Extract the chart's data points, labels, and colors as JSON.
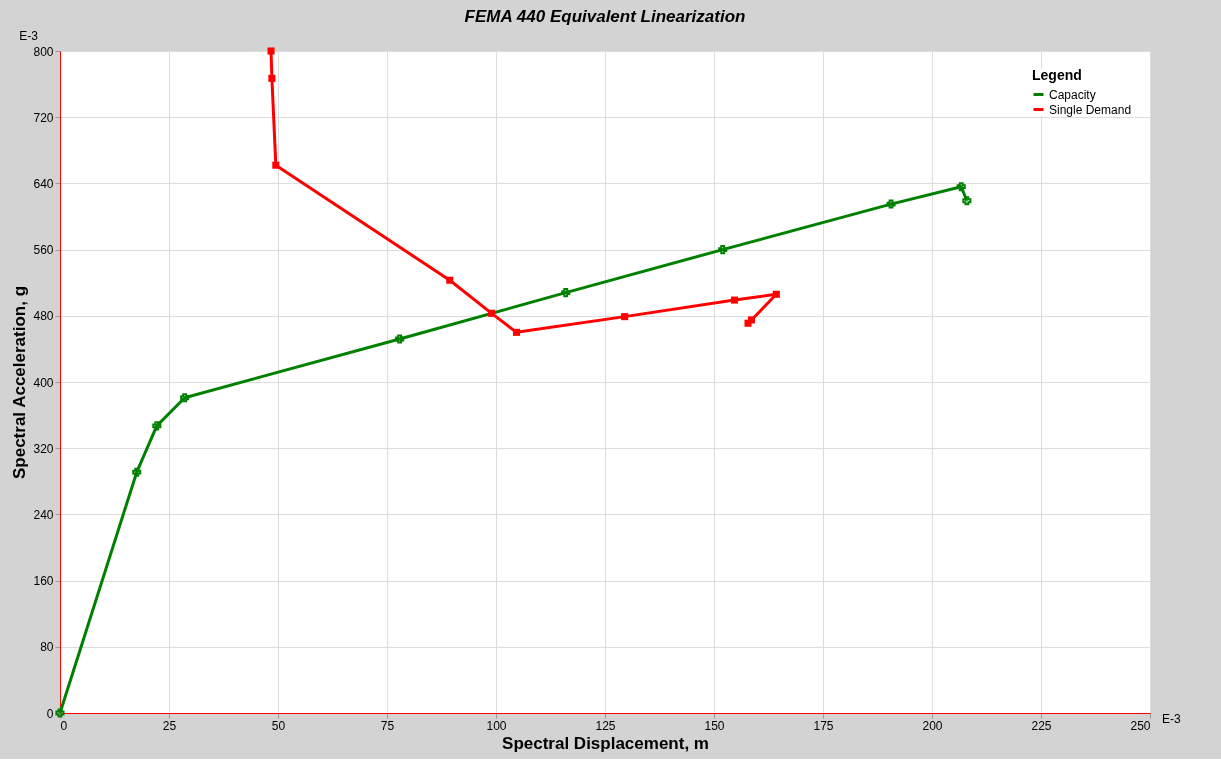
{
  "chart_data": {
    "type": "line",
    "title": "FEMA 440 Equivalent Linearization",
    "xlabel": "Spectral Displacement, m",
    "ylabel": "Spectral Acceleration, g",
    "legend_title": "Legend",
    "annotations": [
      "E-3",
      "E-3"
    ],
    "xlim": [
      0,
      250
    ],
    "xticks": [
      0,
      25,
      50,
      75,
      100,
      125,
      150,
      175,
      200,
      225,
      250
    ],
    "ylim": [
      0,
      800
    ],
    "yticks": [
      0,
      80,
      160,
      240,
      320,
      400,
      480,
      560,
      640,
      720,
      800
    ],
    "grid": true,
    "legend": "top right",
    "line_style": "solid",
    "series": [
      {
        "name": "Capacity",
        "color": "#008000",
        "marker": "cross",
        "x": [
          0,
          17.6,
          22.2,
          28.6,
          77.9,
          116,
          152,
          190.6,
          206.7,
          208
        ],
        "values": [
          0,
          291,
          347,
          381,
          452,
          508,
          560,
          615,
          636,
          619
        ]
      },
      {
        "name": "Single Demand",
        "color": "#ff0000",
        "marker": "square",
        "x": [
          48.4,
          48.6,
          49.5,
          89.4,
          99,
          104.7,
          129.5,
          154.7,
          164.3,
          158.6,
          157.8
        ],
        "values": [
          800,
          767,
          662,
          523,
          483,
          460,
          479,
          499,
          506,
          475,
          471
        ]
      }
    ]
  }
}
